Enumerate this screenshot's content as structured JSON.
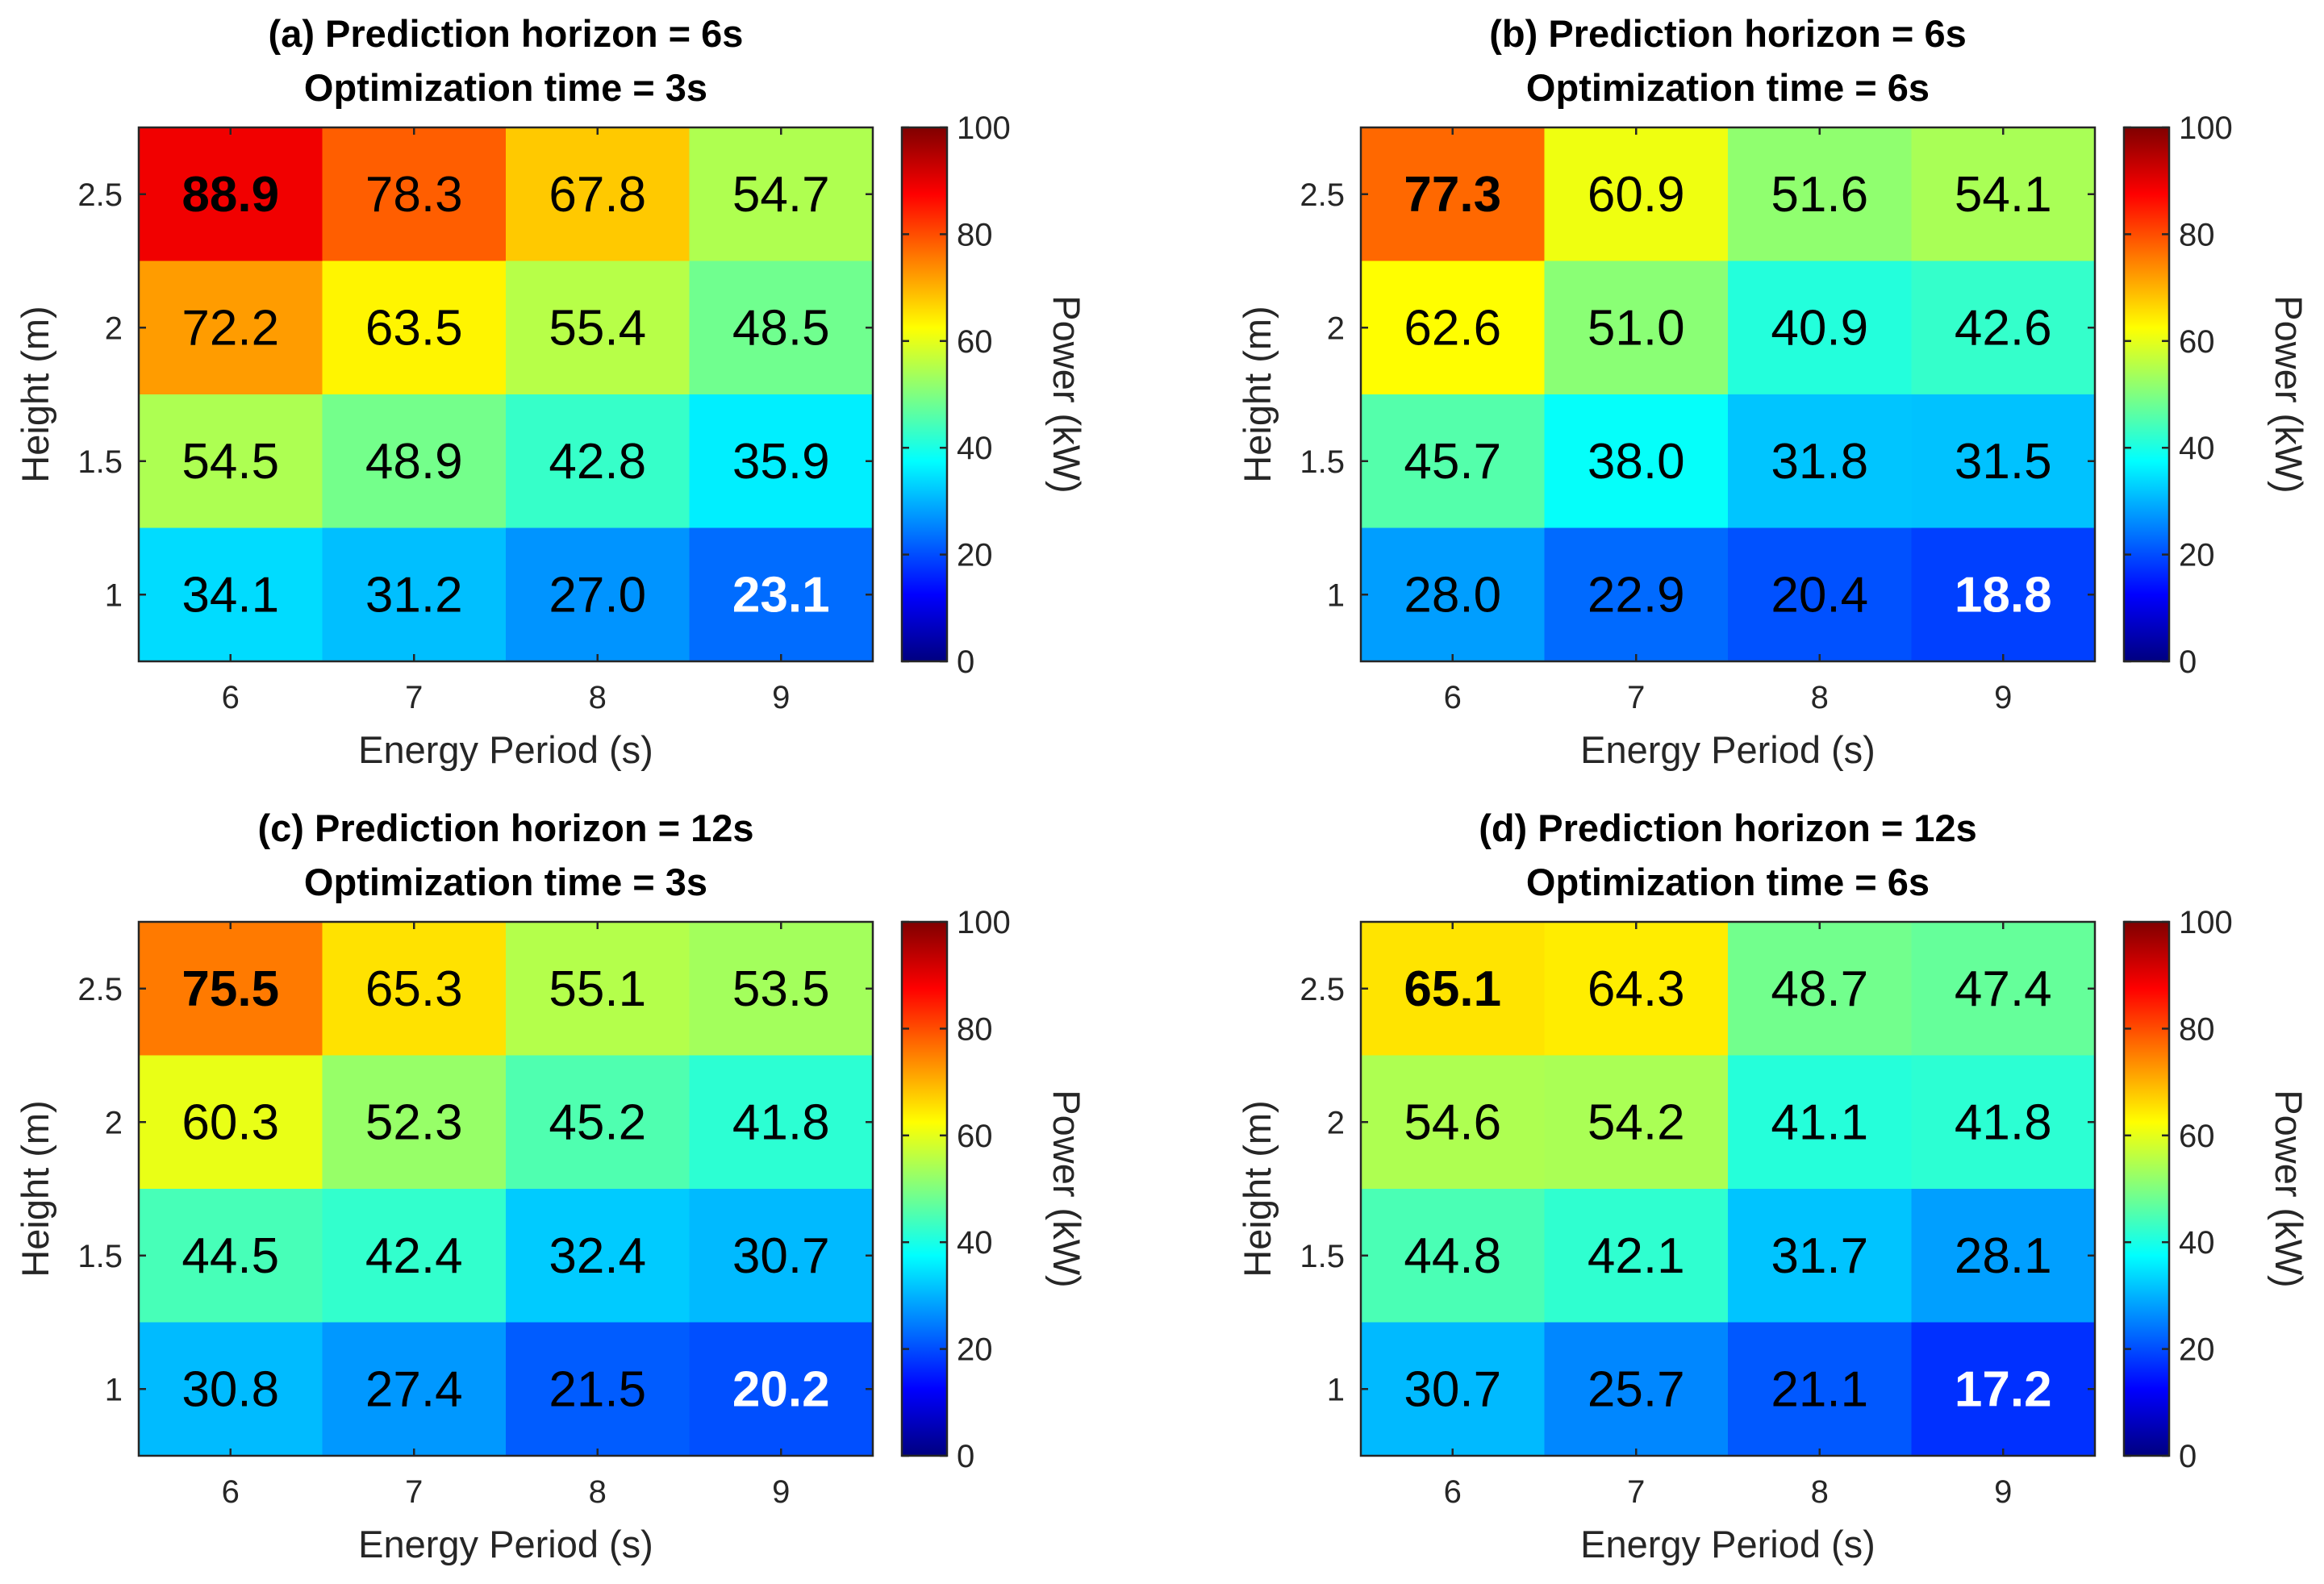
{
  "chart_data": [
    {
      "type": "heatmap",
      "panel": "a",
      "title": [
        "(a) Prediction horizon = 6s",
        "Optimization time = 3s"
      ],
      "xlabel": "Energy Period (s)",
      "ylabel": "Height (m)",
      "x": [
        6,
        7,
        8,
        9
      ],
      "y": [
        2.5,
        2,
        1.5,
        1
      ],
      "x_tick_labels": [
        "6",
        "7",
        "8",
        "9"
      ],
      "y_tick_labels": [
        "2.5",
        "2",
        "1.5",
        "1"
      ],
      "values": [
        [
          88.9,
          78.3,
          67.8,
          54.7
        ],
        [
          72.2,
          63.5,
          55.4,
          48.5
        ],
        [
          54.5,
          48.9,
          42.8,
          35.9
        ],
        [
          34.1,
          31.2,
          27.0,
          23.1
        ]
      ],
      "labels": [
        [
          "88.9",
          "78.3",
          "67.8",
          "54.7"
        ],
        [
          "72.2",
          "63.5",
          "55.4",
          "48.5"
        ],
        [
          "54.5",
          "48.9",
          "42.8",
          "35.9"
        ],
        [
          "34.1",
          "31.2",
          "27.0",
          "23.1"
        ]
      ],
      "highlight_max": [
        0,
        0
      ],
      "highlight_min": [
        3,
        3
      ],
      "colorbar": {
        "label": "Power (kW)",
        "range": [
          0,
          100
        ],
        "ticks": [
          0,
          20,
          40,
          60,
          80,
          100
        ],
        "tick_labels": [
          "0",
          "20",
          "40",
          "60",
          "80",
          "100"
        ],
        "colormap": "jet"
      }
    },
    {
      "type": "heatmap",
      "panel": "b",
      "title": [
        "(b) Prediction horizon = 6s",
        "Optimization time = 6s"
      ],
      "xlabel": "Energy Period (s)",
      "ylabel": "Height (m)",
      "x": [
        6,
        7,
        8,
        9
      ],
      "y": [
        2.5,
        2,
        1.5,
        1
      ],
      "x_tick_labels": [
        "6",
        "7",
        "8",
        "9"
      ],
      "y_tick_labels": [
        "2.5",
        "2",
        "1.5",
        "1"
      ],
      "values": [
        [
          77.3,
          60.9,
          51.6,
          54.1
        ],
        [
          62.6,
          51.0,
          40.9,
          42.6
        ],
        [
          45.7,
          38.0,
          31.8,
          31.5
        ],
        [
          28.0,
          22.9,
          20.4,
          18.8
        ]
      ],
      "labels": [
        [
          "77.3",
          "60.9",
          "51.6",
          "54.1"
        ],
        [
          "62.6",
          "51.0",
          "40.9",
          "42.6"
        ],
        [
          "45.7",
          "38.0",
          "31.8",
          "31.5"
        ],
        [
          "28.0",
          "22.9",
          "20.4",
          "18.8"
        ]
      ],
      "highlight_max": [
        0,
        0
      ],
      "highlight_min": [
        3,
        3
      ],
      "colorbar": {
        "label": "Power (kW)",
        "range": [
          0,
          100
        ],
        "ticks": [
          0,
          20,
          40,
          60,
          80,
          100
        ],
        "tick_labels": [
          "0",
          "20",
          "40",
          "60",
          "80",
          "100"
        ],
        "colormap": "jet"
      }
    },
    {
      "type": "heatmap",
      "panel": "c",
      "title": [
        "(c) Prediction horizon = 12s",
        "Optimization time = 3s"
      ],
      "xlabel": "Energy Period (s)",
      "ylabel": "Height (m)",
      "x": [
        6,
        7,
        8,
        9
      ],
      "y": [
        2.5,
        2,
        1.5,
        1
      ],
      "x_tick_labels": [
        "6",
        "7",
        "8",
        "9"
      ],
      "y_tick_labels": [
        "2.5",
        "2",
        "1.5",
        "1"
      ],
      "values": [
        [
          75.5,
          65.3,
          55.1,
          53.5
        ],
        [
          60.3,
          52.3,
          45.2,
          41.8
        ],
        [
          44.5,
          42.4,
          32.4,
          30.7
        ],
        [
          30.8,
          27.4,
          21.5,
          20.2
        ]
      ],
      "labels": [
        [
          "75.5",
          "65.3",
          "55.1",
          "53.5"
        ],
        [
          "60.3",
          "52.3",
          "45.2",
          "41.8"
        ],
        [
          "44.5",
          "42.4",
          "32.4",
          "30.7"
        ],
        [
          "30.8",
          "27.4",
          "21.5",
          "20.2"
        ]
      ],
      "highlight_max": [
        0,
        0
      ],
      "highlight_min": [
        3,
        3
      ],
      "colorbar": {
        "label": "Power (kW)",
        "range": [
          0,
          100
        ],
        "ticks": [
          0,
          20,
          40,
          60,
          80,
          100
        ],
        "tick_labels": [
          "0",
          "20",
          "40",
          "60",
          "80",
          "100"
        ],
        "colormap": "jet"
      }
    },
    {
      "type": "heatmap",
      "panel": "d",
      "title": [
        "(d) Prediction horizon = 12s",
        "Optimization time = 6s"
      ],
      "xlabel": "Energy Period (s)",
      "ylabel": "Height (m)",
      "x": [
        6,
        7,
        8,
        9
      ],
      "y": [
        2.5,
        2,
        1.5,
        1
      ],
      "x_tick_labels": [
        "6",
        "7",
        "8",
        "9"
      ],
      "y_tick_labels": [
        "2.5",
        "2",
        "1.5",
        "1"
      ],
      "values": [
        [
          65.1,
          64.3,
          48.7,
          47.4
        ],
        [
          54.6,
          54.2,
          41.1,
          41.8
        ],
        [
          44.8,
          42.1,
          31.7,
          28.1
        ],
        [
          30.7,
          25.7,
          21.1,
          17.2
        ]
      ],
      "labels": [
        [
          "65.1",
          "64.3",
          "48.7",
          "47.4"
        ],
        [
          "54.6",
          "54.2",
          "41.1",
          "41.8"
        ],
        [
          "44.8",
          "42.1",
          "31.7",
          "28.1"
        ],
        [
          "30.7",
          "25.7",
          "21.1",
          "17.2"
        ]
      ],
      "highlight_max": [
        0,
        0
      ],
      "highlight_min": [
        3,
        3
      ],
      "colorbar": {
        "label": "Power (kW)",
        "range": [
          0,
          100
        ],
        "ticks": [
          0,
          20,
          40,
          60,
          80,
          100
        ],
        "tick_labels": [
          "0",
          "20",
          "40",
          "60",
          "80",
          "100"
        ],
        "colormap": "jet"
      }
    }
  ]
}
